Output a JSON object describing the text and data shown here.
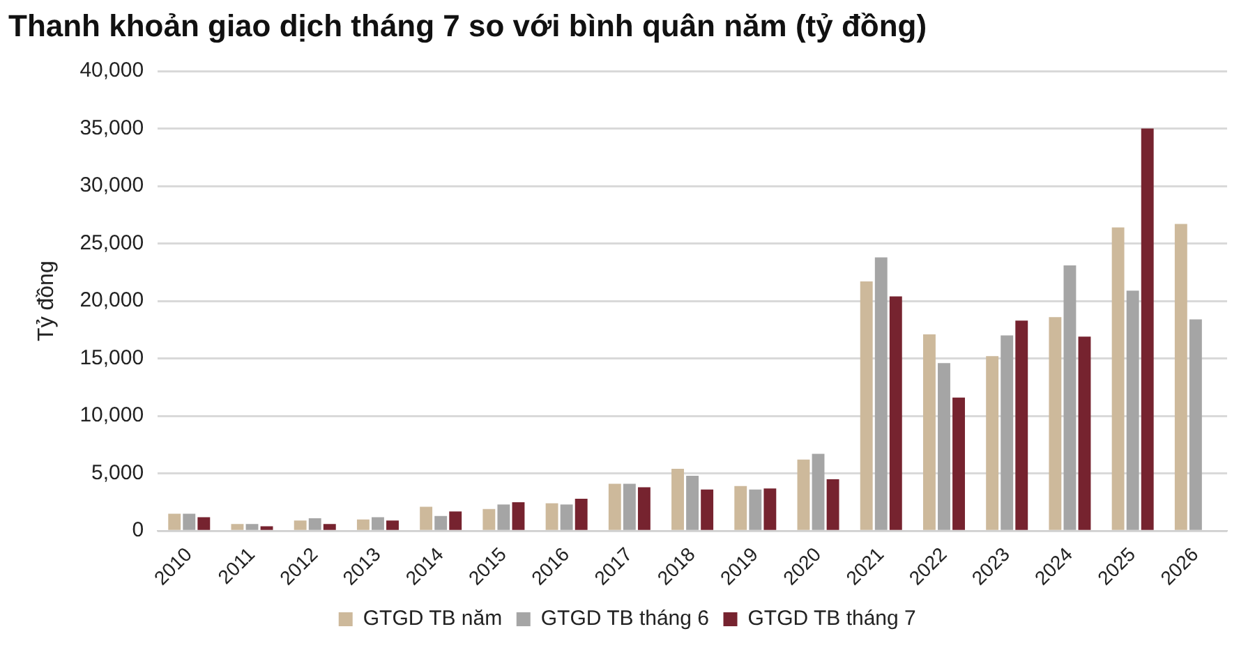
{
  "chart_data": {
    "type": "bar",
    "title": "Thanh khoản giao dịch tháng 7 so với bình quân năm (tỷ đồng)",
    "ylabel": "Tỷ đồng",
    "categories": [
      "2010",
      "2011",
      "2012",
      "2013",
      "2014",
      "2015",
      "2016",
      "2017",
      "2018",
      "2019",
      "2020",
      "2021",
      "2022",
      "2023",
      "2024",
      "2025",
      "2026"
    ],
    "series": [
      {
        "name": "GTGD TB năm",
        "color": "#cdb99b",
        "values": [
          1500,
          600,
          900,
          1000,
          2100,
          1900,
          2400,
          4100,
          5400,
          3900,
          6200,
          21700,
          17100,
          15200,
          18600,
          26400,
          26700
        ]
      },
      {
        "name": "GTGD TB tháng 6",
        "color": "#a5a5a5",
        "values": [
          1500,
          600,
          1100,
          1200,
          1300,
          2300,
          2300,
          4100,
          4800,
          3600,
          6700,
          23800,
          14600,
          17000,
          23100,
          20900,
          18400
        ]
      },
      {
        "name": "GTGD TB tháng 7",
        "color": "#76232f",
        "values": [
          1200,
          400,
          600,
          900,
          1700,
          2500,
          2800,
          3800,
          3600,
          3700,
          4500,
          20400,
          11600,
          18300,
          16900,
          35000,
          null
        ]
      }
    ],
    "ylim": [
      0,
      40000
    ],
    "yticks": [
      0,
      {
        "value": 5000,
        "label": "5,000"
      },
      {
        "value": 10000,
        "label": "10,000"
      },
      {
        "value": 15000,
        "label": "15,000"
      },
      {
        "value": 20000,
        "label": "20,000"
      },
      {
        "value": 25000,
        "label": "25,000"
      },
      {
        "value": 30000,
        "label": "30,000"
      },
      {
        "value": 35000,
        "label": "35,000"
      },
      {
        "value": 40000,
        "label": "40,000"
      }
    ],
    "grid": "y",
    "legend": "bottom"
  }
}
